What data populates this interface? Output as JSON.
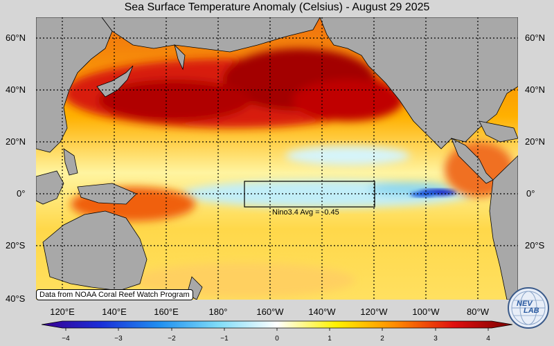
{
  "title": "Sea Surface Temperature Anomaly (Celsius) - August 29 2025",
  "lat_labels": [
    "60°N",
    "40°N",
    "20°N",
    "0°",
    "20°S",
    "40°S"
  ],
  "lon_labels": [
    "120°E",
    "140°E",
    "160°E",
    "180°",
    "160°W",
    "140°W",
    "120°W",
    "100°W",
    "80°W"
  ],
  "colorbar": {
    "ticks": [
      "−4",
      "−3",
      "−2",
      "−1",
      "0",
      "1",
      "2",
      "3",
      "4"
    ],
    "min": -4,
    "max": 4,
    "colors": [
      "#3a0090",
      "#1a2ed8",
      "#1f8ff0",
      "#7fdcf8",
      "#ffffff",
      "#fff200",
      "#ff8c00",
      "#e01010",
      "#7a0000"
    ]
  },
  "nino_box_label": "Nino3.4 Avg = -0.45",
  "credit": "Data from NOAA Coral Reef Watch Program",
  "logo_text": "NEV",
  "logo_text2": "LAB",
  "colors": {
    "land": "#a8a8a8",
    "ocean_base": "#ffd200",
    "warm": "#e21a0a",
    "hot": "#8b0000",
    "cool": "#b8ecf8"
  }
}
